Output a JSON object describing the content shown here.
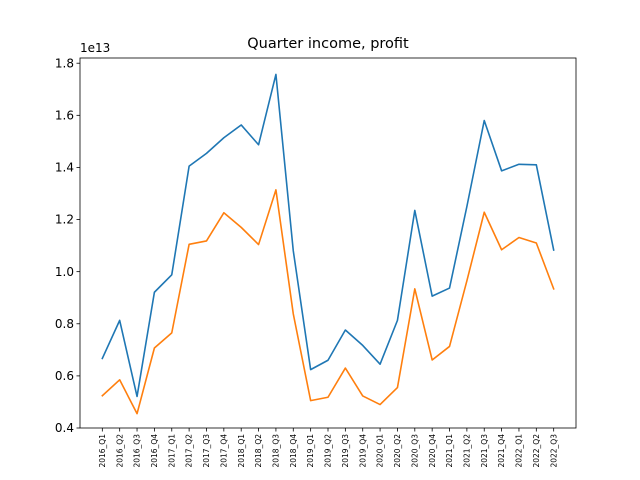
{
  "chart_data": {
    "type": "line",
    "title": "Quarter income, profit",
    "y_offset_label": "1e13",
    "xlabel": "",
    "ylabel": "",
    "ylim": [
      0.4,
      1.82
    ],
    "y_ticks": [
      0.4,
      0.6,
      0.8,
      1.0,
      1.2,
      1.4,
      1.6,
      1.8
    ],
    "y_tick_labels": [
      "0.4",
      "0.6",
      "0.8",
      "1.0",
      "1.2",
      "1.4",
      "1.6",
      "1.8"
    ],
    "categories": [
      "2016_Q1",
      "2016_Q2",
      "2016_Q3",
      "2016_Q4",
      "2017_Q1",
      "2017_Q2",
      "2017_Q3",
      "2017_Q4",
      "2018_Q1",
      "2018_Q2",
      "2018_Q3",
      "2018_Q4",
      "2019_Q1",
      "2019_Q2",
      "2019_Q3",
      "2019_Q4",
      "2020_Q1",
      "2020_Q2",
      "2020_Q3",
      "2020_Q4",
      "2021_Q1",
      "2021_Q2",
      "2021_Q3",
      "2021_Q4",
      "2022_Q1",
      "2022_Q2",
      "2022_Q3"
    ],
    "grid": false,
    "series": [
      {
        "color": "#1f77b4",
        "values": [
          0.667,
          0.813,
          0.521,
          0.921,
          0.988,
          1.405,
          1.454,
          1.514,
          1.563,
          1.487,
          1.757,
          1.08,
          0.624,
          0.66,
          0.776,
          0.717,
          0.645,
          0.813,
          1.235,
          0.906,
          0.937,
          1.25,
          1.58,
          1.387,
          1.412,
          1.41,
          1.083
        ]
      },
      {
        "color": "#ff7f0e",
        "values": [
          0.524,
          0.585,
          0.455,
          0.707,
          0.765,
          1.105,
          1.118,
          1.226,
          1.17,
          1.104,
          1.314,
          0.838,
          0.505,
          0.518,
          0.63,
          0.523,
          0.49,
          0.555,
          0.934,
          0.661,
          0.713,
          0.965,
          1.228,
          1.084,
          1.131,
          1.11,
          0.934
        ]
      }
    ]
  }
}
